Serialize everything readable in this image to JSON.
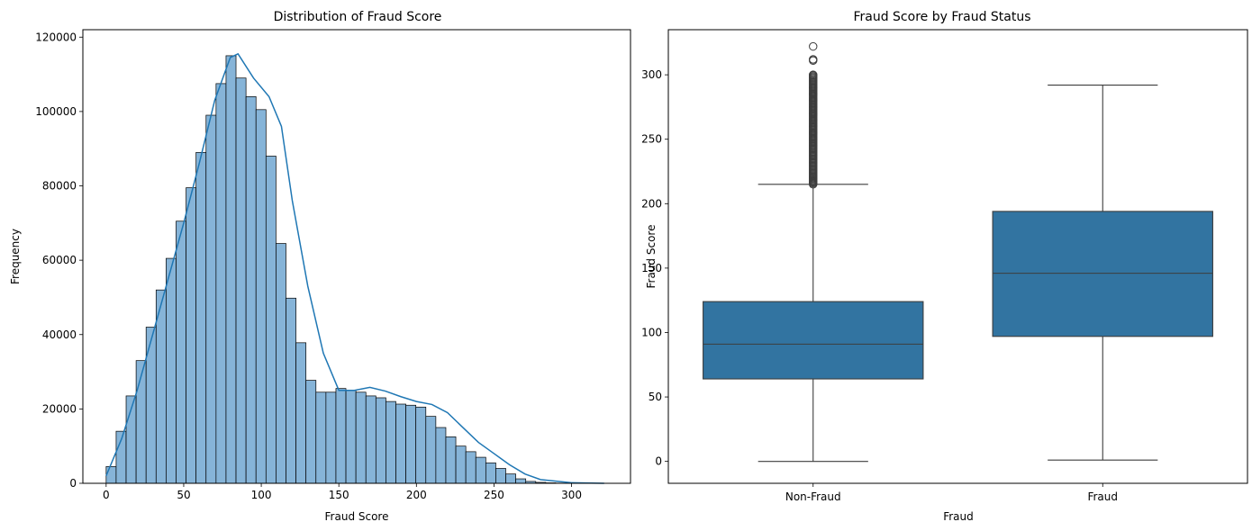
{
  "colors": {
    "hist_fill": "#86b4d8",
    "kde_line": "#1f77b4",
    "box_fill": "#3274a1",
    "edge": "#000000",
    "whisker": "#3d3d3d"
  },
  "chart_data": [
    {
      "type": "bar",
      "subtype": "histogram_with_kde",
      "title": "Distribution of Fraud Score",
      "xlabel": "Fraud Score",
      "ylabel": "Frequency",
      "xlim": [
        -15,
        338
      ],
      "ylim": [
        0,
        122000
      ],
      "xticks": [
        "0",
        "50",
        "100",
        "150",
        "200",
        "250",
        "300"
      ],
      "yticks": [
        "0",
        "20000",
        "40000",
        "60000",
        "80000",
        "100000",
        "120000"
      ],
      "bin_width": 6.44,
      "bin_start": 0,
      "values": [
        4500,
        14000,
        23500,
        33000,
        42000,
        52000,
        60500,
        70500,
        79500,
        89000,
        99000,
        107500,
        115000,
        109000,
        104000,
        100500,
        88000,
        64500,
        49800,
        37800,
        27700,
        24500,
        24500,
        25500,
        25000,
        24500,
        23500,
        23000,
        22000,
        21300,
        21000,
        20500,
        18000,
        15000,
        12500,
        10000,
        8500,
        7000,
        5500,
        4000,
        2500,
        1200,
        500,
        250,
        120,
        60,
        30,
        15,
        8,
        4
      ],
      "kde": [
        [
          0,
          2000
        ],
        [
          10,
          12000
        ],
        [
          20,
          25000
        ],
        [
          30,
          40000
        ],
        [
          40,
          55000
        ],
        [
          50,
          70000
        ],
        [
          60,
          86000
        ],
        [
          70,
          103000
        ],
        [
          80,
          114500
        ],
        [
          85,
          115500
        ],
        [
          95,
          109000
        ],
        [
          105,
          104000
        ],
        [
          113,
          96000
        ],
        [
          120,
          76000
        ],
        [
          130,
          53000
        ],
        [
          140,
          35000
        ],
        [
          150,
          25000
        ],
        [
          160,
          25000
        ],
        [
          170,
          25800
        ],
        [
          180,
          24800
        ],
        [
          190,
          23300
        ],
        [
          200,
          22000
        ],
        [
          210,
          21200
        ],
        [
          220,
          19000
        ],
        [
          230,
          15000
        ],
        [
          240,
          11000
        ],
        [
          250,
          8000
        ],
        [
          260,
          5000
        ],
        [
          270,
          2500
        ],
        [
          280,
          1000
        ],
        [
          300,
          150
        ],
        [
          321,
          0
        ]
      ],
      "grid": false
    },
    {
      "type": "box",
      "title": "Fraud Score by Fraud Status",
      "xlabel": "Fraud",
      "ylabel": "Fraud Score",
      "ylim": [
        -17,
        335
      ],
      "yticks": [
        "0",
        "50",
        "100",
        "150",
        "200",
        "250",
        "300"
      ],
      "categories": [
        "Non-Fraud",
        "Fraud"
      ],
      "boxes": [
        {
          "category": "Non-Fraud",
          "whisker_low": 0,
          "q1": 64,
          "median": 91,
          "q3": 124,
          "whisker_high": 215,
          "outliers": [
            215,
            217,
            220,
            224,
            228,
            232,
            236,
            240,
            245,
            250,
            255,
            260,
            265,
            270,
            275,
            280,
            285,
            290,
            294,
            298,
            300,
            311,
            312,
            322
          ]
        },
        {
          "category": "Fraud",
          "whisker_low": 1,
          "q1": 97,
          "median": 146,
          "q3": 194,
          "whisker_high": 292,
          "outliers": []
        }
      ],
      "grid": false
    }
  ]
}
